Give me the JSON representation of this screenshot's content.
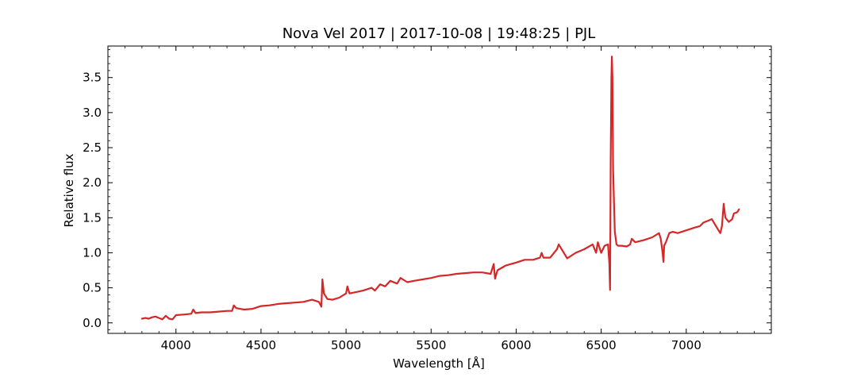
{
  "chart_data": {
    "type": "line",
    "title": "Nova Vel 2017 | 2017-10-08 | 19:48:25 | PJL",
    "xlabel": "Wavelength [Å]",
    "ylabel": "Relative flux",
    "xlim": [
      3600,
      7500
    ],
    "ylim": [
      -0.15,
      3.95
    ],
    "x_ticks": [
      4000,
      4500,
      5000,
      5500,
      6000,
      6500,
      7000
    ],
    "x_tick_labels": [
      "4000",
      "4500",
      "5000",
      "5500",
      "6000",
      "6500",
      "7000"
    ],
    "y_ticks": [
      0.0,
      0.5,
      1.0,
      1.5,
      2.0,
      2.5,
      3.0,
      3.5
    ],
    "y_tick_labels": [
      "0.0",
      "0.5",
      "1.0",
      "1.5",
      "2.0",
      "2.5",
      "3.0",
      "3.5"
    ],
    "grid": false,
    "line_color": "#d62728",
    "series": [
      {
        "x": [
          3800,
          3820,
          3840,
          3860,
          3880,
          3900,
          3920,
          3940,
          3960,
          3980,
          4000,
          4050,
          4090,
          4102,
          4115,
          4150,
          4200,
          4250,
          4300,
          4330,
          4340,
          4355,
          4400,
          4450,
          4500,
          4550,
          4600,
          4650,
          4700,
          4750,
          4800,
          4840,
          4855,
          4861,
          4870,
          4890,
          4920,
          4960,
          5000,
          5008,
          5020,
          5060,
          5100,
          5150,
          5170,
          5200,
          5230,
          5260,
          5300,
          5320,
          5360,
          5400,
          5450,
          5500,
          5550,
          5600,
          5650,
          5700,
          5750,
          5800,
          5850,
          5868,
          5876,
          5890,
          5940,
          6000,
          6050,
          6100,
          6140,
          6150,
          6160,
          6200,
          6240,
          6250,
          6300,
          6350,
          6400,
          6450,
          6470,
          6480,
          6500,
          6520,
          6540,
          6548,
          6552,
          6556,
          6560,
          6563,
          6566,
          6570,
          6580,
          6590,
          6600,
          6620,
          6650,
          6670,
          6680,
          6700,
          6750,
          6800,
          6840,
          6850,
          6860,
          6866,
          6870,
          6880,
          6900,
          6920,
          6950,
          7000,
          7050,
          7080,
          7100,
          7150,
          7180,
          7200,
          7210,
          7220,
          7230,
          7250,
          7270,
          7280,
          7300,
          7310
        ],
        "y": [
          0.06,
          0.07,
          0.06,
          0.08,
          0.09,
          0.07,
          0.05,
          0.1,
          0.06,
          0.05,
          0.11,
          0.12,
          0.13,
          0.19,
          0.14,
          0.15,
          0.15,
          0.16,
          0.17,
          0.17,
          0.25,
          0.21,
          0.19,
          0.2,
          0.24,
          0.25,
          0.27,
          0.28,
          0.29,
          0.3,
          0.33,
          0.3,
          0.23,
          0.62,
          0.42,
          0.34,
          0.33,
          0.36,
          0.42,
          0.52,
          0.42,
          0.44,
          0.46,
          0.5,
          0.46,
          0.55,
          0.52,
          0.6,
          0.56,
          0.64,
          0.58,
          0.6,
          0.62,
          0.64,
          0.67,
          0.68,
          0.7,
          0.71,
          0.72,
          0.72,
          0.7,
          0.84,
          0.63,
          0.75,
          0.82,
          0.86,
          0.9,
          0.9,
          0.93,
          1.0,
          0.93,
          0.93,
          1.05,
          1.12,
          0.92,
          1.0,
          1.05,
          1.12,
          1.0,
          1.15,
          1.0,
          1.1,
          1.12,
          0.85,
          0.47,
          2.3,
          3.5,
          3.8,
          3.5,
          2.2,
          1.3,
          1.12,
          1.1,
          1.1,
          1.09,
          1.12,
          1.2,
          1.15,
          1.18,
          1.22,
          1.28,
          1.2,
          1.02,
          0.87,
          1.1,
          1.15,
          1.28,
          1.3,
          1.28,
          1.32,
          1.36,
          1.38,
          1.43,
          1.48,
          1.36,
          1.28,
          1.38,
          1.7,
          1.5,
          1.44,
          1.48,
          1.56,
          1.58,
          1.62
        ]
      }
    ]
  }
}
